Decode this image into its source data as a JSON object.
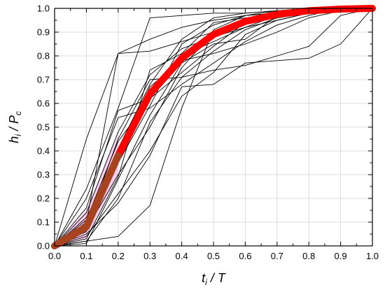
{
  "chart_data": {
    "type": "line",
    "title": "",
    "xlabel": {
      "base": "t",
      "sub": "i",
      "rest": " / T"
    },
    "ylabel": {
      "base1": "h",
      "sub1": "i",
      "sep": " / ",
      "base2": "P",
      "sub2": "c"
    },
    "xlim": [
      0,
      1
    ],
    "ylim": [
      0,
      1
    ],
    "xticks": [
      0.0,
      0.1,
      0.2,
      0.3,
      0.4,
      0.5,
      0.6,
      0.7,
      0.8,
      0.9,
      1.0
    ],
    "yticks": [
      0.0,
      0.1,
      0.2,
      0.3,
      0.4,
      0.5,
      0.6,
      0.7,
      0.8,
      0.9,
      1.0
    ],
    "xtick_labels": [
      "0.0",
      "0.1",
      "0.2",
      "0.3",
      "0.4",
      "0.5",
      "0.6",
      "0.7",
      "0.8",
      "0.9",
      "1.0"
    ],
    "ytick_labels": [
      "0.0",
      "0.1",
      "0.2",
      "0.3",
      "0.4",
      "0.5",
      "0.6",
      "0.7",
      "0.8",
      "0.9",
      "1.0"
    ],
    "grid": true,
    "colors": {
      "individual": "#000000",
      "mean": "#ff0000",
      "band": "#f4a6e0",
      "band_overlap": "#8b5a2b",
      "grid": "#dcdcdc"
    },
    "x": [
      0.0,
      0.1,
      0.2,
      0.3,
      0.4,
      0.5,
      0.6,
      0.7,
      0.8,
      0.9,
      1.0
    ],
    "mean": [
      0.0,
      0.08,
      0.38,
      0.64,
      0.79,
      0.89,
      0.945,
      0.975,
      0.99,
      0.997,
      1.0
    ],
    "band": {
      "x": [
        0.0,
        0.1,
        0.2
      ],
      "lower": [
        0.0,
        0.03,
        0.3
      ],
      "upper": [
        0.0,
        0.15,
        0.47
      ]
    },
    "series": [
      {
        "values": [
          0.0,
          0.45,
          0.81,
          0.87,
          0.92,
          0.95,
          0.97,
          0.98,
          0.99,
          1.0,
          1.0
        ]
      },
      {
        "values": [
          0.0,
          0.24,
          0.58,
          0.96,
          0.97,
          0.98,
          0.98,
          0.99,
          0.99,
          1.0,
          1.0
        ]
      },
      {
        "values": [
          0.0,
          0.1,
          0.81,
          0.82,
          0.86,
          0.9,
          0.95,
          0.98,
          0.99,
          1.0,
          1.0
        ]
      },
      {
        "values": [
          0.0,
          0.02,
          0.04,
          0.17,
          0.58,
          0.91,
          0.97,
          0.99,
          1.0,
          1.0,
          1.0
        ]
      },
      {
        "values": [
          0.0,
          0.05,
          0.18,
          0.38,
          0.67,
          0.68,
          0.77,
          0.78,
          0.79,
          0.85,
          1.0
        ]
      },
      {
        "values": [
          0.0,
          0.08,
          0.45,
          0.7,
          0.71,
          0.74,
          0.76,
          0.8,
          0.84,
          0.97,
          1.0
        ]
      },
      {
        "values": [
          0.0,
          0.01,
          0.28,
          0.55,
          0.77,
          0.85,
          0.87,
          0.97,
          0.99,
          1.0,
          1.0
        ]
      },
      {
        "values": [
          0.0,
          0.16,
          0.57,
          0.62,
          0.73,
          0.84,
          0.94,
          0.98,
          0.99,
          1.0,
          1.0
        ]
      },
      {
        "values": [
          0.0,
          0.04,
          0.22,
          0.4,
          0.63,
          0.73,
          0.89,
          0.95,
          0.98,
          1.0,
          1.0
        ]
      },
      {
        "values": [
          0.0,
          0.12,
          0.38,
          0.67,
          0.78,
          0.81,
          0.85,
          0.9,
          0.96,
          0.99,
          1.0
        ]
      },
      {
        "values": [
          0.0,
          0.03,
          0.29,
          0.74,
          0.81,
          0.94,
          0.96,
          0.97,
          0.98,
          0.99,
          1.0
        ]
      },
      {
        "values": [
          0.0,
          0.2,
          0.54,
          0.58,
          0.68,
          0.77,
          0.86,
          0.93,
          0.97,
          1.0,
          1.0
        ]
      },
      {
        "values": [
          0.0,
          0.07,
          0.3,
          0.5,
          0.75,
          0.9,
          0.94,
          0.96,
          0.98,
          0.99,
          1.0
        ]
      },
      {
        "values": [
          0.0,
          0.11,
          0.44,
          0.62,
          0.8,
          0.86,
          0.92,
          0.97,
          0.99,
          1.0,
          1.0
        ]
      },
      {
        "values": [
          0.0,
          0.06,
          0.35,
          0.59,
          0.85,
          0.93,
          0.97,
          0.98,
          0.99,
          1.0,
          1.0
        ]
      },
      {
        "values": [
          0.0,
          0.14,
          0.48,
          0.72,
          0.83,
          0.88,
          0.92,
          0.95,
          0.98,
          0.99,
          1.0
        ]
      },
      {
        "values": [
          0.0,
          0.02,
          0.2,
          0.52,
          0.71,
          0.82,
          0.91,
          0.96,
          0.98,
          1.0,
          1.0
        ]
      },
      {
        "values": [
          0.0,
          0.09,
          0.41,
          0.68,
          0.87,
          0.96,
          0.98,
          0.99,
          1.0,
          1.0,
          1.0
        ]
      }
    ]
  }
}
